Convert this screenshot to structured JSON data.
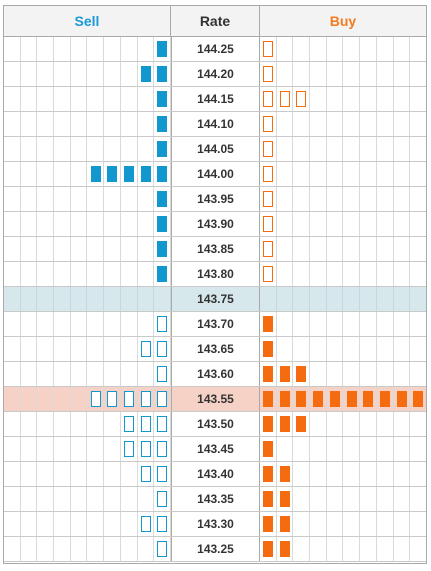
{
  "header": {
    "sell_label": "Sell",
    "rate_label": "Rate",
    "buy_label": "Buy"
  },
  "colors": {
    "sell_accent": "#1397cf",
    "buy_accent": "#f46b10",
    "market_row": "#d6e8ec",
    "highlight_row": "#f6d2c6"
  },
  "ladder": {
    "max_blocks_per_side": 10,
    "rows": [
      {
        "rate": "144.25",
        "sell_blocks": 1,
        "sell_style": "filled",
        "buy_blocks": 1,
        "buy_style": "outline",
        "highlight": false,
        "market": false
      },
      {
        "rate": "144.20",
        "sell_blocks": 2,
        "sell_style": "filled",
        "buy_blocks": 1,
        "buy_style": "outline",
        "highlight": false,
        "market": false
      },
      {
        "rate": "144.15",
        "sell_blocks": 1,
        "sell_style": "filled",
        "buy_blocks": 3,
        "buy_style": "outline",
        "highlight": false,
        "market": false
      },
      {
        "rate": "144.10",
        "sell_blocks": 1,
        "sell_style": "filled",
        "buy_blocks": 1,
        "buy_style": "outline",
        "highlight": false,
        "market": false
      },
      {
        "rate": "144.05",
        "sell_blocks": 1,
        "sell_style": "filled",
        "buy_blocks": 1,
        "buy_style": "outline",
        "highlight": false,
        "market": false
      },
      {
        "rate": "144.00",
        "sell_blocks": 5,
        "sell_style": "filled",
        "buy_blocks": 1,
        "buy_style": "outline",
        "highlight": false,
        "market": false
      },
      {
        "rate": "143.95",
        "sell_blocks": 1,
        "sell_style": "filled",
        "buy_blocks": 1,
        "buy_style": "outline",
        "highlight": false,
        "market": false
      },
      {
        "rate": "143.90",
        "sell_blocks": 1,
        "sell_style": "filled",
        "buy_blocks": 1,
        "buy_style": "outline",
        "highlight": false,
        "market": false
      },
      {
        "rate": "143.85",
        "sell_blocks": 1,
        "sell_style": "filled",
        "buy_blocks": 1,
        "buy_style": "outline",
        "highlight": false,
        "market": false
      },
      {
        "rate": "143.80",
        "sell_blocks": 1,
        "sell_style": "filled",
        "buy_blocks": 1,
        "buy_style": "outline",
        "highlight": false,
        "market": false
      },
      {
        "rate": "143.75",
        "sell_blocks": 0,
        "sell_style": "filled",
        "buy_blocks": 0,
        "buy_style": "filled",
        "highlight": false,
        "market": true
      },
      {
        "rate": "143.70",
        "sell_blocks": 1,
        "sell_style": "outline",
        "buy_blocks": 1,
        "buy_style": "filled",
        "highlight": false,
        "market": false
      },
      {
        "rate": "143.65",
        "sell_blocks": 2,
        "sell_style": "outline",
        "buy_blocks": 1,
        "buy_style": "filled",
        "highlight": false,
        "market": false
      },
      {
        "rate": "143.60",
        "sell_blocks": 1,
        "sell_style": "outline",
        "buy_blocks": 3,
        "buy_style": "filled",
        "highlight": false,
        "market": false
      },
      {
        "rate": "143.55",
        "sell_blocks": 5,
        "sell_style": "outline",
        "buy_blocks": 10,
        "buy_style": "filled",
        "highlight": true,
        "market": false
      },
      {
        "rate": "143.50",
        "sell_blocks": 3,
        "sell_style": "outline",
        "buy_blocks": 3,
        "buy_style": "filled",
        "highlight": false,
        "market": false
      },
      {
        "rate": "143.45",
        "sell_blocks": 3,
        "sell_style": "outline",
        "buy_blocks": 1,
        "buy_style": "filled",
        "highlight": false,
        "market": false
      },
      {
        "rate": "143.40",
        "sell_blocks": 2,
        "sell_style": "outline",
        "buy_blocks": 2,
        "buy_style": "filled",
        "highlight": false,
        "market": false
      },
      {
        "rate": "143.35",
        "sell_blocks": 1,
        "sell_style": "outline",
        "buy_blocks": 2,
        "buy_style": "filled",
        "highlight": false,
        "market": false
      },
      {
        "rate": "143.30",
        "sell_blocks": 2,
        "sell_style": "outline",
        "buy_blocks": 2,
        "buy_style": "filled",
        "highlight": false,
        "market": false
      },
      {
        "rate": "143.25",
        "sell_blocks": 1,
        "sell_style": "outline",
        "buy_blocks": 2,
        "buy_style": "filled",
        "highlight": false,
        "market": false
      }
    ]
  }
}
